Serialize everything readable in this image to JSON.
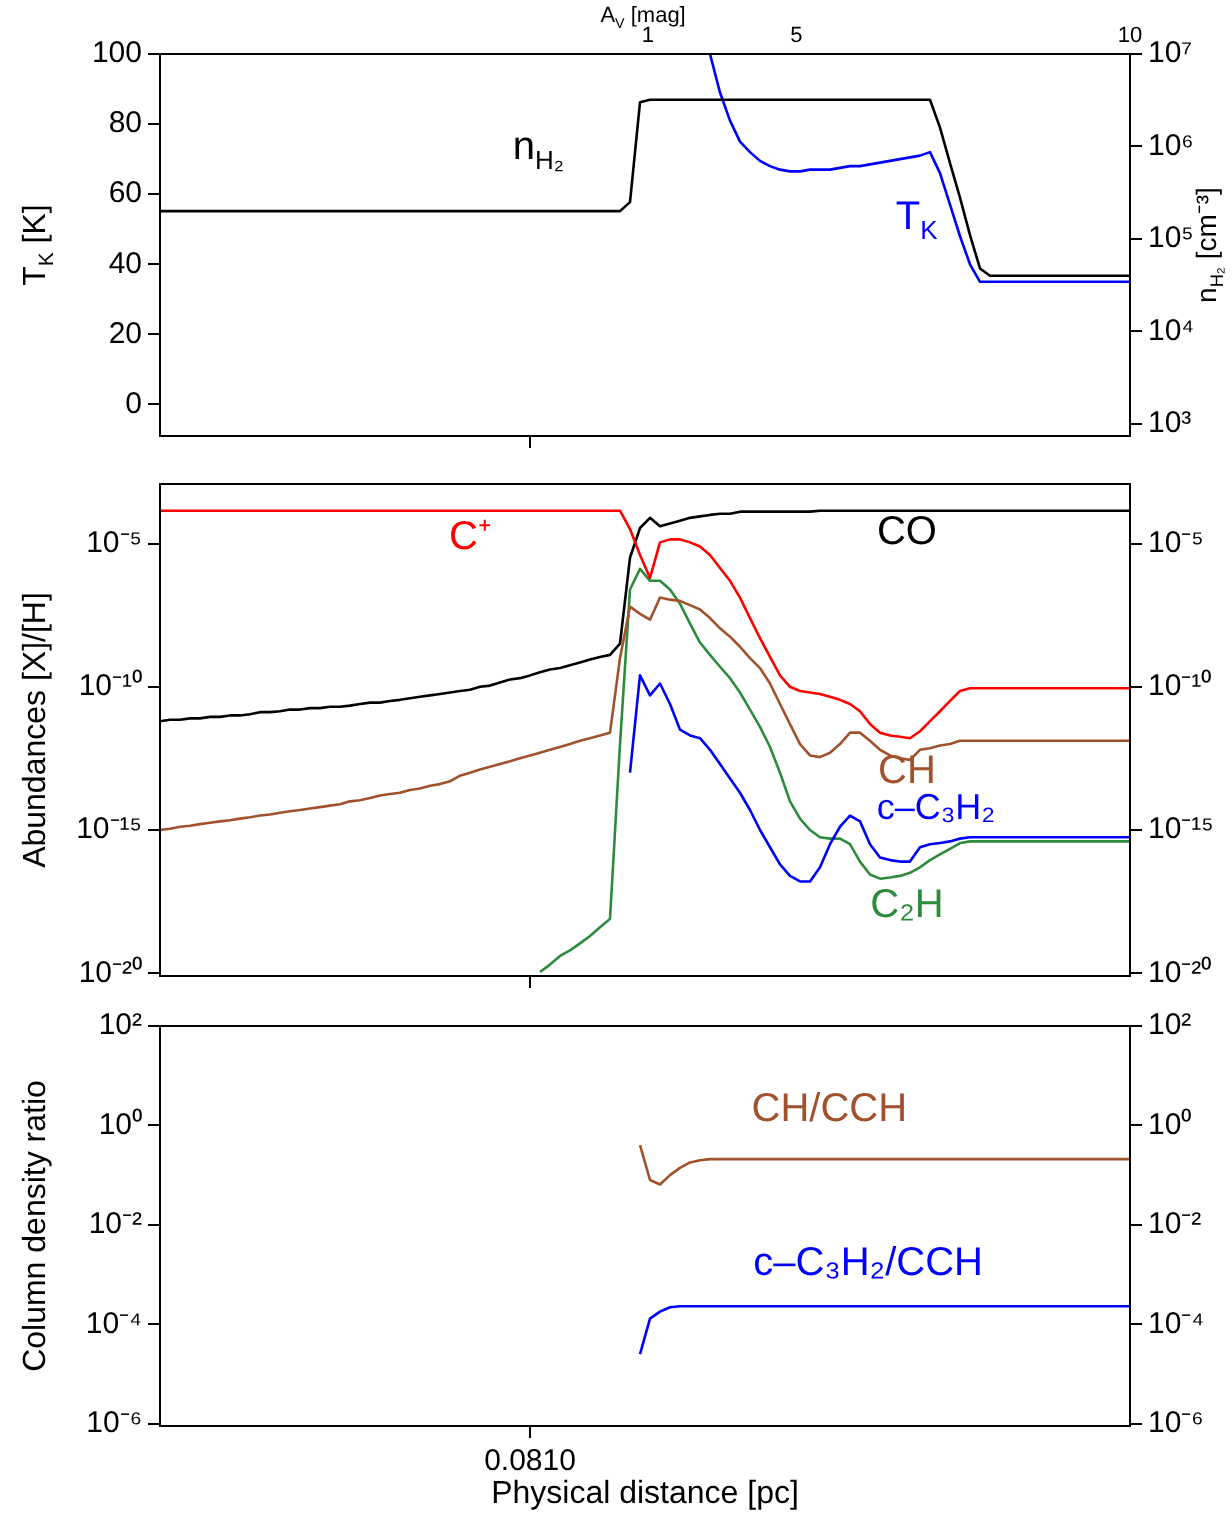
{
  "chart_data": [
    {
      "type": "line",
      "ylabel": "T$_{K}$ [K]",
      "y2label": "n$_{H₂}$ [cm⁻³]",
      "marker": "none",
      "legend": false,
      "grid": false,
      "log": "y2",
      "tick_labels": "y",
      "annotations": [
        "A$_{V}$ [mag]",
        "1",
        "5",
        "10"
      ],
      "categories": [
        null,
        null,
        null,
        null,
        null,
        null,
        null,
        null,
        null,
        null,
        null,
        null,
        null,
        null,
        null,
        null,
        null,
        null,
        null,
        null,
        null,
        null,
        null,
        null,
        null,
        null,
        null,
        null,
        null,
        null,
        null,
        null,
        null,
        null,
        null,
        null,
        null,
        null,
        null,
        null,
        null,
        null,
        null,
        null,
        null,
        null,
        null,
        null,
        null,
        null,
        null,
        null,
        null,
        null,
        null,
        null,
        null,
        null,
        null,
        null,
        null,
        null,
        null,
        null,
        null,
        null,
        null,
        null,
        null,
        null,
        null,
        null,
        null,
        null,
        null,
        null,
        null,
        null,
        null,
        null,
        null,
        null,
        null,
        null,
        null,
        null,
        null,
        null,
        null,
        null,
        null,
        null,
        null,
        null,
        null,
        null,
        null,
        null
      ],
      "ylim": [
        -9,
        100
      ],
      "yticks": [
        0,
        20,
        40,
        60,
        80,
        100
      ],
      "y2lim": [
        740,
        10000000
      ],
      "y2ticks": [
        {
          "value": 1000,
          "label": "10³"
        },
        {
          "value": 10000,
          "label": "10⁴"
        },
        {
          "value": 100000,
          "label": "10⁵"
        },
        {
          "value": 1000000,
          "label": "10⁶"
        },
        {
          "value": 10000000,
          "label": "10⁷"
        }
      ],
      "series": [
        {
          "name": "n$_{H₂}$",
          "color": "#000000",
          "axis": "y2",
          "values": [
            200000,
            200000,
            200000,
            200000,
            200000,
            200000,
            200000,
            200000,
            200000,
            200000,
            200000,
            200000,
            200000,
            200000,
            200000,
            200000,
            200000,
            200000,
            200000,
            200000,
            200000,
            200000,
            200000,
            200000,
            200000,
            200000,
            200000,
            200000,
            200000,
            200000,
            200000,
            200000,
            200000,
            200000,
            200000,
            200000,
            200000,
            200000,
            200000,
            200000,
            200000,
            200000,
            200000,
            200000,
            200000,
            200000,
            200000,
            250000,
            3000000,
            3200000,
            3200000,
            3200000,
            3200000,
            3200000,
            3200000,
            3200000,
            3200000,
            3200000,
            3200000,
            3200000,
            3200000,
            3200000,
            3200000,
            3200000,
            3200000,
            3200000,
            3200000,
            3200000,
            3200000,
            3200000,
            3200000,
            3200000,
            3200000,
            3200000,
            3200000,
            3200000,
            3200000,
            3200000,
            1600000,
            660000,
            280000,
            110000,
            48000,
            40000,
            40000,
            40000,
            40000,
            40000,
            40000,
            40000,
            40000,
            40000,
            40000,
            40000,
            40000,
            40000,
            40000,
            40000
          ]
        },
        {
          "name": "T$_{K}$",
          "color": "#0000ff",
          "values": [
            null,
            null,
            null,
            null,
            null,
            null,
            null,
            null,
            null,
            null,
            null,
            null,
            null,
            null,
            null,
            null,
            null,
            null,
            null,
            null,
            null,
            null,
            null,
            null,
            null,
            null,
            null,
            null,
            null,
            null,
            null,
            null,
            null,
            null,
            null,
            null,
            null,
            null,
            null,
            null,
            null,
            null,
            null,
            null,
            null,
            null,
            null,
            null,
            null,
            null,
            null,
            null,
            null,
            null,
            null,
            100,
            89,
            81,
            75,
            72,
            69.5,
            68,
            67,
            66.5,
            66.5,
            67,
            67,
            67,
            67.5,
            68,
            68,
            68.5,
            69,
            69.5,
            70,
            70.5,
            71,
            72,
            66,
            57,
            48,
            40,
            35,
            35,
            35,
            35,
            35,
            35,
            35,
            35,
            35,
            35,
            35,
            35,
            35,
            35,
            35,
            35
          ]
        }
      ]
    },
    {
      "type": "line",
      "ylabel": "Abundances [X]/[H]",
      "marker": "none",
      "legend": false,
      "grid": false,
      "log": true,
      "tick_labels": "y",
      "categories": [
        null,
        null,
        null,
        null,
        null,
        null,
        null,
        null,
        null,
        null,
        null,
        null,
        null,
        null,
        null,
        null,
        null,
        null,
        null,
        null,
        null,
        null,
        null,
        null,
        null,
        null,
        null,
        null,
        null,
        null,
        null,
        null,
        null,
        null,
        null,
        null,
        null,
        null,
        null,
        null,
        null,
        null,
        null,
        null,
        null,
        null,
        null,
        null,
        null,
        null,
        null,
        null,
        null,
        null,
        null,
        null,
        null,
        null,
        null,
        null,
        null,
        null,
        null,
        null,
        null,
        null,
        null,
        null,
        null,
        null,
        null,
        null,
        null,
        null,
        null,
        null,
        null,
        null,
        null,
        null,
        null,
        null,
        null,
        null,
        null,
        null,
        null,
        null,
        null,
        null,
        null,
        null,
        null,
        null,
        null,
        null,
        null,
        null
      ],
      "ylim": [
        8e-21,
        0.0012
      ],
      "yticks": [
        {
          "value": 1e-20,
          "label": "10⁻²⁰"
        },
        {
          "value": 1e-15,
          "label": "10⁻¹⁵"
        },
        {
          "value": 1e-10,
          "label": "10⁻¹⁰"
        },
        {
          "value": 1e-05,
          "label": "10⁻⁵"
        }
      ],
      "series": [
        {
          "name": "C⁺",
          "color": "#ff0000",
          "values": [
            0.00014,
            0.00014,
            0.00014,
            0.00014,
            0.00014,
            0.00014,
            0.00014,
            0.00014,
            0.00014,
            0.00014,
            0.00014,
            0.00014,
            0.00014,
            0.00014,
            0.00014,
            0.00014,
            0.00014,
            0.00014,
            0.00014,
            0.00014,
            0.00014,
            0.00014,
            0.00014,
            0.00014,
            0.00014,
            0.00014,
            0.00014,
            0.00014,
            0.00014,
            0.00014,
            0.00014,
            0.00014,
            0.00014,
            0.00014,
            0.00014,
            0.00014,
            0.00014,
            0.00014,
            0.00014,
            0.00014,
            0.00014,
            0.00014,
            0.00014,
            0.00014,
            0.00014,
            0.00014,
            0.00014,
            3.2e-05,
            4e-06,
            6.3e-07,
            1.1e-05,
            1.4e-05,
            1.4e-05,
            1.1e-05,
            7.9e-06,
            4e-06,
            1.4e-06,
            5e-07,
            1.3e-07,
            2.5e-08,
            5e-09,
            1.1e-09,
            2.5e-10,
            1e-10,
            7.1e-11,
            6.3e-11,
            5.6e-11,
            4.5e-11,
            3.5e-11,
            2.5e-11,
            1.4e-11,
            5e-12,
            2.5e-12,
            2e-12,
            1.8e-12,
            1.6e-12,
            2.8e-12,
            6.3e-12,
            1.4e-11,
            3.2e-11,
            7.1e-11,
            8.9e-11,
            8.9e-11,
            8.9e-11,
            8.9e-11,
            8.9e-11,
            8.9e-11,
            8.9e-11,
            8.9e-11,
            8.9e-11,
            8.9e-11,
            8.9e-11,
            8.9e-11,
            8.9e-11,
            8.9e-11,
            8.9e-11,
            8.9e-11,
            8.9e-11
          ]
        },
        {
          "name": "CO",
          "color": "#000000",
          "values": [
            6.3e-12,
            7.1e-12,
            7.1e-12,
            7.9e-12,
            7.9e-12,
            8.9e-12,
            8.9e-12,
            1e-11,
            1e-11,
            1.1e-11,
            1.3e-11,
            1.3e-11,
            1.4e-11,
            1.6e-11,
            1.6e-11,
            1.8e-11,
            1.8e-11,
            2e-11,
            2e-11,
            2.2e-11,
            2.5e-11,
            2.8e-11,
            2.8e-11,
            3.2e-11,
            3.5e-11,
            4e-11,
            4.5e-11,
            5e-11,
            5.6e-11,
            6.3e-11,
            7.1e-11,
            7.9e-11,
            1e-10,
            1.1e-10,
            1.4e-10,
            1.8e-10,
            2e-10,
            2.5e-10,
            3.2e-10,
            4e-10,
            4.5e-10,
            5.6e-10,
            7.1e-10,
            8.9e-10,
            1.1e-09,
            1.3e-09,
            3.2e-09,
            3.2e-06,
            3.5e-05,
            7.9e-05,
            4e-05,
            5e-05,
            6.3e-05,
            7.9e-05,
            8.9e-05,
            0.0001,
            0.00011,
            0.00011,
            0.00013,
            0.00013,
            0.00013,
            0.00013,
            0.00013,
            0.00013,
            0.00013,
            0.00013,
            0.00014,
            0.00014,
            0.00014,
            0.00014,
            0.00014,
            0.00014,
            0.00014,
            0.00014,
            0.00014,
            0.00014,
            0.00014,
            0.00014,
            0.00014,
            0.00014,
            0.00014,
            0.00014,
            0.00014,
            0.00014,
            0.00014,
            0.00014,
            0.00014,
            0.00014,
            0.00014,
            0.00014,
            0.00014,
            0.00014,
            0.00014,
            0.00014,
            0.00014,
            0.00014,
            0.00014,
            0.00014
          ]
        },
        {
          "name": "CH",
          "color": "#a0522d",
          "values": [
            1e-15,
            1.1e-15,
            1.3e-15,
            1.4e-15,
            1.6e-15,
            1.8e-15,
            2e-15,
            2.2e-15,
            2.5e-15,
            2.8e-15,
            3.2e-15,
            3.5e-15,
            4e-15,
            4.5e-15,
            5e-15,
            5.6e-15,
            6.3e-15,
            7.1e-15,
            7.9e-15,
            1e-14,
            1.1e-14,
            1.3e-14,
            1.6e-14,
            1.8e-14,
            2e-14,
            2.5e-14,
            2.8e-14,
            3.5e-14,
            4e-14,
            5e-14,
            7.9e-14,
            1e-13,
            1.3e-13,
            1.6e-13,
            2e-13,
            2.5e-13,
            3.2e-13,
            4e-13,
            5e-13,
            6.3e-13,
            7.9e-13,
            1e-12,
            1.3e-12,
            1.6e-12,
            2e-12,
            2.5e-12,
            1e-09,
            6.3e-08,
            3.5e-08,
            2.2e-08,
            1.3e-07,
            1.1e-07,
            1e-07,
            7.1e-08,
            5e-08,
            2.5e-08,
            1.1e-08,
            5.6e-09,
            2.5e-09,
            1e-09,
            4.5e-10,
            1.3e-10,
            2.5e-11,
            5e-12,
            1e-12,
            4e-13,
            3.5e-13,
            5e-13,
            1e-12,
            2.5e-12,
            2.5e-12,
            1.3e-12,
            6.3e-13,
            4e-13,
            3.2e-13,
            2.8e-13,
            6.3e-13,
            7.1e-13,
            8.9e-13,
            1e-12,
            1.3e-12,
            1.3e-12,
            1.3e-12,
            1.3e-12,
            1.3e-12,
            1.3e-12,
            1.3e-12,
            1.3e-12,
            1.3e-12,
            1.3e-12,
            1.3e-12,
            1.3e-12,
            1.3e-12,
            1.3e-12,
            1.3e-12,
            1.3e-12,
            1.3e-12,
            1.3e-12
          ]
        },
        {
          "name": "c–C₃H₂",
          "color": "#0000ff",
          "values": [
            null,
            null,
            null,
            null,
            null,
            null,
            null,
            null,
            null,
            null,
            null,
            null,
            null,
            null,
            null,
            null,
            null,
            null,
            null,
            null,
            null,
            null,
            null,
            null,
            null,
            null,
            null,
            null,
            null,
            null,
            null,
            null,
            null,
            null,
            null,
            null,
            null,
            null,
            null,
            null,
            null,
            null,
            null,
            null,
            null,
            null,
            null,
            1e-13,
            2.5e-10,
            5e-11,
            1.3e-10,
            2.5e-11,
            3.2e-12,
            2e-12,
            1.6e-12,
            6.3e-13,
            2e-13,
            6.3e-14,
            2e-14,
            5e-15,
            1e-15,
            2.5e-16,
            6.3e-17,
            2.5e-17,
            1.6e-17,
            1.6e-17,
            5e-17,
            3.2e-16,
            1.3e-15,
            3.2e-15,
            2e-15,
            3.2e-16,
            1.1e-16,
            8.9e-17,
            7.9e-17,
            7.9e-17,
            2.5e-16,
            3.2e-16,
            3.5e-16,
            4e-16,
            5e-16,
            5.6e-16,
            5.6e-16,
            5.6e-16,
            5.6e-16,
            5.6e-16,
            5.6e-16,
            5.6e-16,
            5.6e-16,
            5.6e-16,
            5.6e-16,
            5.6e-16,
            5.6e-16,
            5.6e-16,
            5.6e-16,
            5.6e-16,
            5.6e-16,
            5.6e-16
          ]
        },
        {
          "name": "C₂H",
          "color": "#2e8b3e",
          "values": [
            null,
            null,
            null,
            null,
            null,
            null,
            null,
            null,
            null,
            null,
            null,
            null,
            null,
            null,
            null,
            null,
            null,
            null,
            null,
            null,
            null,
            null,
            null,
            null,
            null,
            null,
            null,
            null,
            null,
            null,
            null,
            null,
            null,
            null,
            null,
            null,
            null,
            null,
            1.1e-20,
            2e-20,
            4e-20,
            6.3e-20,
            1.1e-19,
            2e-19,
            4e-19,
            7.9e-19,
            1e-12,
            2.5e-07,
            1.3e-06,
            5e-07,
            5e-07,
            2.5e-07,
            7.9e-08,
            1.6e-08,
            3.5e-09,
            1.3e-09,
            5e-10,
            2e-10,
            6.3e-11,
            1.6e-11,
            4e-12,
            7.9e-13,
            1e-13,
            1e-14,
            2.5e-15,
            1e-15,
            5.6e-16,
            5e-16,
            5e-16,
            3.2e-16,
            7.9e-17,
            2.8e-17,
            2e-17,
            2.2e-17,
            2.5e-17,
            3.2e-17,
            5e-17,
            8.9e-17,
            1.4e-16,
            2.2e-16,
            3.5e-16,
            4e-16,
            4e-16,
            4e-16,
            4e-16,
            4e-16,
            4e-16,
            4e-16,
            4e-16,
            4e-16,
            4e-16,
            4e-16,
            4e-16,
            4e-16,
            4e-16,
            4e-16,
            4e-16,
            4e-16
          ]
        }
      ]
    },
    {
      "type": "line",
      "ylabel": "Column density ratio",
      "xlabel": "Physical distance [pc]",
      "marker": "none",
      "legend": false,
      "grid": false,
      "log": true,
      "categories": [
        null,
        null,
        null,
        null,
        null,
        null,
        null,
        null,
        null,
        null,
        null,
        null,
        null,
        null,
        null,
        null,
        null,
        null,
        null,
        null,
        null,
        null,
        null,
        null,
        null,
        null,
        null,
        null,
        null,
        null,
        null,
        null,
        null,
        null,
        null,
        null,
        null,
        "0.0810",
        null,
        null,
        null,
        null,
        null,
        null,
        null,
        null,
        null,
        null,
        null,
        null,
        null,
        null,
        null,
        null,
        null,
        null,
        null,
        null,
        null,
        null,
        null,
        null,
        null,
        null,
        null,
        null,
        null,
        null,
        null,
        null,
        null,
        null,
        null,
        null,
        null,
        null,
        null,
        null,
        null,
        null,
        null,
        null,
        null,
        null,
        null,
        null,
        null,
        null,
        null,
        null,
        null,
        null,
        null,
        null,
        null,
        null,
        null,
        null
      ],
      "ylim": [
        9e-07,
        100
      ],
      "yticks": [
        {
          "value": 1e-06,
          "label": "10⁻⁶"
        },
        {
          "value": 0.0001,
          "label": "10⁻⁴"
        },
        {
          "value": 0.01,
          "label": "10⁻²"
        },
        {
          "value": 1,
          "label": "10⁰"
        },
        {
          "value": 100,
          "label": "10²"
        }
      ],
      "series": [
        {
          "name": "CH/CCH",
          "color": "#a0522d",
          "values": [
            null,
            null,
            null,
            null,
            null,
            null,
            null,
            null,
            null,
            null,
            null,
            null,
            null,
            null,
            null,
            null,
            null,
            null,
            null,
            null,
            null,
            null,
            null,
            null,
            null,
            null,
            null,
            null,
            null,
            null,
            null,
            null,
            null,
            null,
            null,
            null,
            null,
            null,
            null,
            null,
            null,
            null,
            null,
            null,
            null,
            null,
            null,
            null,
            0.4,
            0.08,
            0.065,
            0.1,
            0.14,
            0.18,
            0.2,
            0.21,
            0.21,
            0.21,
            0.21,
            0.21,
            0.21,
            0.21,
            0.21,
            0.21,
            0.21,
            0.21,
            0.21,
            0.21,
            0.21,
            0.21,
            0.21,
            0.21,
            0.21,
            0.21,
            0.21,
            0.21,
            0.21,
            0.21,
            0.21,
            0.21,
            0.21,
            0.21,
            0.21,
            0.21,
            0.21,
            0.21,
            0.21,
            0.21,
            0.21,
            0.21,
            0.21,
            0.21,
            0.21,
            0.21,
            0.21,
            0.21,
            0.21,
            0.21
          ]
        },
        {
          "name": "c–C₃H₂/CCH",
          "color": "#0000ff",
          "values": [
            null,
            null,
            null,
            null,
            null,
            null,
            null,
            null,
            null,
            null,
            null,
            null,
            null,
            null,
            null,
            null,
            null,
            null,
            null,
            null,
            null,
            null,
            null,
            null,
            null,
            null,
            null,
            null,
            null,
            null,
            null,
            null,
            null,
            null,
            null,
            null,
            null,
            null,
            null,
            null,
            null,
            null,
            null,
            null,
            null,
            null,
            null,
            null,
            2.5e-05,
            0.00013,
            0.00018,
            0.00022,
            0.00023,
            0.00023,
            0.00023,
            0.00023,
            0.00023,
            0.00023,
            0.00023,
            0.00023,
            0.00023,
            0.00023,
            0.00023,
            0.00023,
            0.00023,
            0.00023,
            0.00023,
            0.00023,
            0.00023,
            0.00023,
            0.00023,
            0.00023,
            0.00023,
            0.00023,
            0.00023,
            0.00023,
            0.00023,
            0.00023,
            0.00023,
            0.00023,
            0.00023,
            0.00023,
            0.00023,
            0.00023,
            0.00023,
            0.00023,
            0.00023,
            0.00023,
            0.00023,
            0.00023,
            0.00023,
            0.00023,
            0.00023,
            0.00023,
            0.00023,
            0.00023,
            0.00023,
            0.00023
          ]
        }
      ]
    }
  ]
}
